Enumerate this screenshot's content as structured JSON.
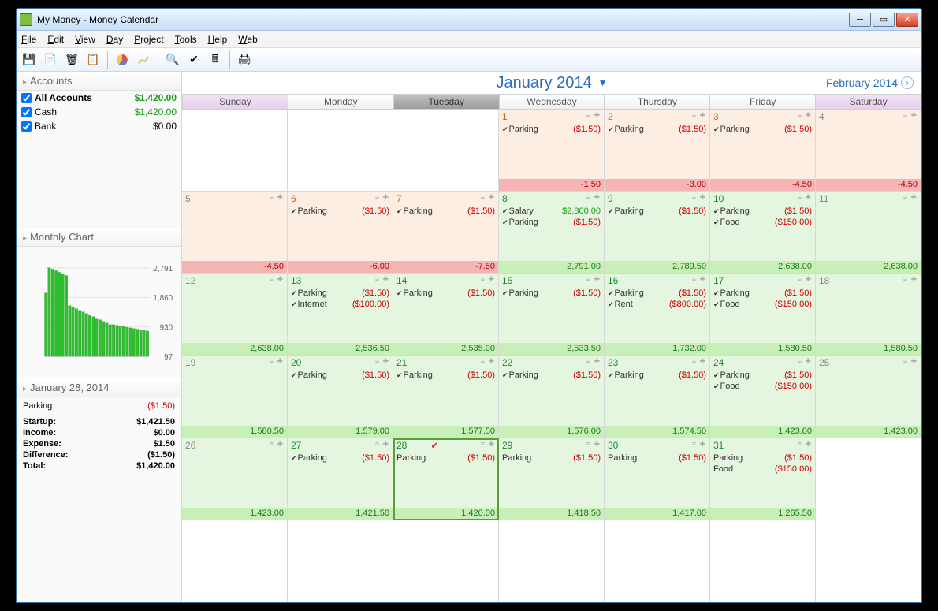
{
  "window": {
    "title": "My Money - Money Calendar"
  },
  "menu": [
    "File",
    "Edit",
    "View",
    "Day",
    "Project",
    "Tools",
    "Help",
    "Web"
  ],
  "sidebar": {
    "accounts_title": "Accounts",
    "accounts": [
      {
        "name": "All Accounts",
        "amount": "$1,420.00",
        "bold": true,
        "green": true
      },
      {
        "name": "Cash",
        "amount": "$1,420.00",
        "bold": false,
        "green": true
      },
      {
        "name": "Bank",
        "amount": "$0.00",
        "bold": false,
        "green": false
      }
    ],
    "chart_title": "Monthly Chart",
    "chart": {
      "ytick_labels": [
        "2,791",
        "1,860",
        "930",
        "97"
      ],
      "ymax": 2791,
      "bars": [
        2000,
        2791,
        2750,
        2700,
        2650,
        2600,
        2550,
        1600,
        1550,
        1500,
        1450,
        1400,
        1350,
        1300,
        1250,
        1200,
        1150,
        1100,
        1050,
        1000,
        1000,
        980,
        960,
        940,
        920,
        900,
        880,
        860,
        840,
        820,
        800
      ],
      "bar_color": "#2fbf2f",
      "grid_color": "#e0e0e0"
    },
    "selected_date_title": "January 28, 2014",
    "day_entry": {
      "label": "Parking",
      "amount": "($1.50)"
    },
    "summary": [
      {
        "label": "Startup:",
        "value": "$1,421.50"
      },
      {
        "label": "Income:",
        "value": "$0.00"
      },
      {
        "label": "Expense:",
        "value": "$1.50"
      },
      {
        "label": "Difference:",
        "value": "($1.50)"
      },
      {
        "label": "Total:",
        "value": "$1,420.00"
      }
    ]
  },
  "calendar": {
    "title": "January 2014",
    "next_label": "February 2014",
    "day_headers": [
      "Sunday",
      "Monday",
      "Tuesday",
      "Wednesday",
      "Thursday",
      "Friday",
      "Saturday"
    ],
    "weekend_idx": [
      0,
      6
    ],
    "today_idx": 2,
    "cells": [
      {
        "blank": true
      },
      {
        "blank": true
      },
      {
        "blank": true
      },
      {
        "d": "1",
        "cls": "past-neg",
        "numcls": "org",
        "entries": [
          {
            "l": "Parking",
            "a": "($1.50)",
            "chk": true
          }
        ],
        "bal": "-1.50",
        "balcls": "neg"
      },
      {
        "d": "2",
        "cls": "past-neg",
        "numcls": "org",
        "entries": [
          {
            "l": "Parking",
            "a": "($1.50)",
            "chk": true
          }
        ],
        "bal": "-3.00",
        "balcls": "neg"
      },
      {
        "d": "3",
        "cls": "past-neg",
        "numcls": "org",
        "entries": [
          {
            "l": "Parking",
            "a": "($1.50)",
            "chk": true
          }
        ],
        "bal": "-4.50",
        "balcls": "neg"
      },
      {
        "d": "4",
        "cls": "past-neg",
        "numcls": "",
        "entries": [],
        "bal": "-4.50",
        "balcls": "neg"
      },
      {
        "d": "5",
        "cls": "past-neg",
        "numcls": "",
        "entries": [],
        "bal": "-4.50",
        "balcls": "neg"
      },
      {
        "d": "6",
        "cls": "past-neg",
        "numcls": "org",
        "entries": [
          {
            "l": "Parking",
            "a": "($1.50)",
            "chk": true
          }
        ],
        "bal": "-6.00",
        "balcls": "neg"
      },
      {
        "d": "7",
        "cls": "past-neg",
        "numcls": "org",
        "entries": [
          {
            "l": "Parking",
            "a": "($1.50)",
            "chk": true
          }
        ],
        "bal": "-7.50",
        "balcls": "neg"
      },
      {
        "d": "8",
        "cls": "pos",
        "numcls": "grn",
        "entries": [
          {
            "l": "Salary",
            "a": "$2,800.00",
            "chk": true,
            "grn": true
          },
          {
            "l": "Parking",
            "a": "($1.50)",
            "chk": true
          }
        ],
        "bal": "2,791.00",
        "balcls": "pos"
      },
      {
        "d": "9",
        "cls": "pos",
        "numcls": "grn",
        "entries": [
          {
            "l": "Parking",
            "a": "($1.50)",
            "chk": true
          }
        ],
        "bal": "2,789.50",
        "balcls": "pos"
      },
      {
        "d": "10",
        "cls": "pos",
        "numcls": "grn",
        "entries": [
          {
            "l": "Parking",
            "a": "($1.50)",
            "chk": true
          },
          {
            "l": "Food",
            "a": "($150.00)",
            "chk": true
          }
        ],
        "bal": "2,638.00",
        "balcls": "pos"
      },
      {
        "d": "11",
        "cls": "pos",
        "numcls": "",
        "entries": [],
        "bal": "2,638.00",
        "balcls": "pos"
      },
      {
        "d": "12",
        "cls": "pos",
        "numcls": "",
        "entries": [],
        "bal": "2,638.00",
        "balcls": "pos"
      },
      {
        "d": "13",
        "cls": "pos",
        "numcls": "grn",
        "entries": [
          {
            "l": "Parking",
            "a": "($1.50)",
            "chk": true
          },
          {
            "l": "Internet",
            "a": "($100.00)",
            "chk": true
          }
        ],
        "bal": "2,536.50",
        "balcls": "pos"
      },
      {
        "d": "14",
        "cls": "pos",
        "numcls": "grn",
        "entries": [
          {
            "l": "Parking",
            "a": "($1.50)",
            "chk": true
          }
        ],
        "bal": "2,535.00",
        "balcls": "pos"
      },
      {
        "d": "15",
        "cls": "pos",
        "numcls": "grn",
        "entries": [
          {
            "l": "Parking",
            "a": "($1.50)",
            "chk": true
          }
        ],
        "bal": "2,533.50",
        "balcls": "pos"
      },
      {
        "d": "16",
        "cls": "pos",
        "numcls": "grn",
        "entries": [
          {
            "l": "Parking",
            "a": "($1.50)",
            "chk": true
          },
          {
            "l": "Rent",
            "a": "($800.00)",
            "chk": true
          }
        ],
        "bal": "1,732.00",
        "balcls": "pos"
      },
      {
        "d": "17",
        "cls": "pos",
        "numcls": "grn",
        "entries": [
          {
            "l": "Parking",
            "a": "($1.50)",
            "chk": true
          },
          {
            "l": "Food",
            "a": "($150.00)",
            "chk": true
          }
        ],
        "bal": "1,580.50",
        "balcls": "pos"
      },
      {
        "d": "18",
        "cls": "pos",
        "numcls": "",
        "entries": [],
        "bal": "1,580.50",
        "balcls": "pos"
      },
      {
        "d": "19",
        "cls": "pos",
        "numcls": "",
        "entries": [],
        "bal": "1,580.50",
        "balcls": "pos"
      },
      {
        "d": "20",
        "cls": "pos",
        "numcls": "grn",
        "entries": [
          {
            "l": "Parking",
            "a": "($1.50)",
            "chk": true
          }
        ],
        "bal": "1,579.00",
        "balcls": "pos"
      },
      {
        "d": "21",
        "cls": "pos",
        "numcls": "grn",
        "entries": [
          {
            "l": "Parking",
            "a": "($1.50)",
            "chk": true
          }
        ],
        "bal": "1,577.50",
        "balcls": "pos"
      },
      {
        "d": "22",
        "cls": "pos",
        "numcls": "grn",
        "entries": [
          {
            "l": "Parking",
            "a": "($1.50)",
            "chk": true
          }
        ],
        "bal": "1,576.00",
        "balcls": "pos"
      },
      {
        "d": "23",
        "cls": "pos",
        "numcls": "grn",
        "entries": [
          {
            "l": "Parking",
            "a": "($1.50)",
            "chk": true
          }
        ],
        "bal": "1,574.50",
        "balcls": "pos"
      },
      {
        "d": "24",
        "cls": "pos",
        "numcls": "grn",
        "entries": [
          {
            "l": "Parking",
            "a": "($1.50)",
            "chk": true
          },
          {
            "l": "Food",
            "a": "($150.00)",
            "chk": true
          }
        ],
        "bal": "1,423.00",
        "balcls": "pos"
      },
      {
        "d": "25",
        "cls": "pos",
        "numcls": "",
        "entries": [],
        "bal": "1,423.00",
        "balcls": "pos"
      },
      {
        "d": "26",
        "cls": "pos",
        "numcls": "",
        "entries": [],
        "bal": "1,423.00",
        "balcls": "pos"
      },
      {
        "d": "27",
        "cls": "pos",
        "numcls": "grn",
        "entries": [
          {
            "l": "Parking",
            "a": "($1.50)",
            "chk": true
          }
        ],
        "bal": "1,421.50",
        "balcls": "pos"
      },
      {
        "d": "28",
        "cls": "pos today",
        "numcls": "grn",
        "today": true,
        "entries": [
          {
            "l": "Parking",
            "a": "($1.50)",
            "chk": false,
            "redchk": true
          }
        ],
        "bal": "1,420.00",
        "balcls": "pos"
      },
      {
        "d": "29",
        "cls": "pos",
        "numcls": "grn",
        "entries": [
          {
            "l": "Parking",
            "a": "($1.50)",
            "chk": false
          }
        ],
        "bal": "1,418.50",
        "balcls": "pos"
      },
      {
        "d": "30",
        "cls": "pos",
        "numcls": "grn",
        "entries": [
          {
            "l": "Parking",
            "a": "($1.50)",
            "chk": false
          }
        ],
        "bal": "1,417.00",
        "balcls": "pos"
      },
      {
        "d": "31",
        "cls": "pos",
        "numcls": "grn",
        "entries": [
          {
            "l": "Parking",
            "a": "($1.50)",
            "chk": false
          },
          {
            "l": "Food",
            "a": "($150.00)",
            "chk": false
          }
        ],
        "bal": "1,265.50",
        "balcls": "pos"
      },
      {
        "blank": true
      },
      {
        "blank": true
      },
      {
        "blank": true
      },
      {
        "blank": true
      },
      {
        "blank": true
      },
      {
        "blank": true
      },
      {
        "blank": true
      },
      {
        "blank": true
      }
    ]
  }
}
